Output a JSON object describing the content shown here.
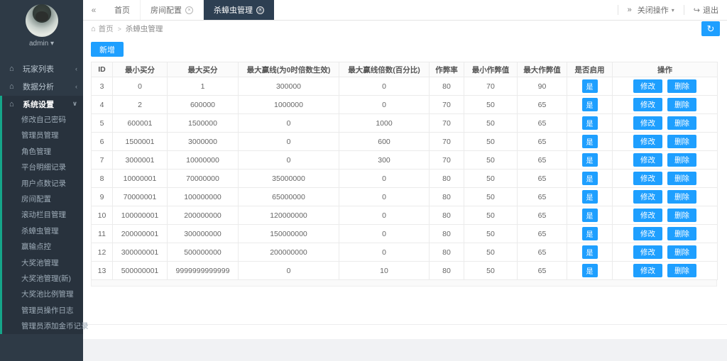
{
  "colors": {
    "accent_blue": "#1e9fff",
    "sidebar_bg": "#2e3a46",
    "sidebar_accent_teal": "#15a589",
    "active_tab_bg": "#2d3f52"
  },
  "sidebar": {
    "user": {
      "name": "admin",
      "caret": "▾"
    },
    "menu": [
      {
        "label": "玩家列表",
        "icon": "home-icon",
        "expanded": false,
        "children": []
      },
      {
        "label": "数据分析",
        "icon": "home-icon",
        "expanded": false,
        "children": []
      },
      {
        "label": "系统设置",
        "icon": "home-icon",
        "expanded": true,
        "children": [
          "修改自己密码",
          "管理员管理",
          "角色管理",
          "平台明细记录",
          "用户点数记录",
          "房间配置",
          "滚动栏目管理",
          "杀蟑虫管理",
          "赢输点控",
          "大奖池管理",
          "大奖池管理(新)",
          "大奖池比例管理",
          "管理员操作日志",
          "管理员添加金币记录"
        ]
      }
    ]
  },
  "tabbar": {
    "collapse_icon": "«",
    "tabs": [
      {
        "label": "首页",
        "closable": false,
        "active": false
      },
      {
        "label": "房间配置",
        "closable": true,
        "active": false
      },
      {
        "label": "杀蟑虫管理",
        "closable": true,
        "active": true
      }
    ],
    "right": {
      "expand_icon": "»",
      "close_ops_label": "关闭操作",
      "logout_icon": "↪",
      "logout_label": "退出"
    }
  },
  "breadcrumb": {
    "home": "首页",
    "separator": ">",
    "current": "杀蟑虫管理"
  },
  "toolbar": {
    "add_label": "新增",
    "refresh_icon": "↻"
  },
  "table": {
    "headers": [
      "ID",
      "最小买分",
      "最大买分",
      "最大赢线(为0时倍数生效)",
      "最大赢线倍数(百分比)",
      "作弊率",
      "最小作弊值",
      "最大作弊值",
      "是否启用",
      "操作"
    ],
    "enabled_label": "是",
    "row_actions": [
      "修改",
      "删除"
    ],
    "rows": [
      {
        "id": "3",
        "min_buy": "0",
        "max_buy": "1",
        "max_win": "300000",
        "max_win_pct": "0",
        "cheat_rate": "80",
        "min_cheat": "70",
        "max_cheat": "90"
      },
      {
        "id": "4",
        "min_buy": "2",
        "max_buy": "600000",
        "max_win": "1000000",
        "max_win_pct": "0",
        "cheat_rate": "70",
        "min_cheat": "50",
        "max_cheat": "65"
      },
      {
        "id": "5",
        "min_buy": "600001",
        "max_buy": "1500000",
        "max_win": "0",
        "max_win_pct": "1000",
        "cheat_rate": "70",
        "min_cheat": "50",
        "max_cheat": "65"
      },
      {
        "id": "6",
        "min_buy": "1500001",
        "max_buy": "3000000",
        "max_win": "0",
        "max_win_pct": "600",
        "cheat_rate": "70",
        "min_cheat": "50",
        "max_cheat": "65"
      },
      {
        "id": "7",
        "min_buy": "3000001",
        "max_buy": "10000000",
        "max_win": "0",
        "max_win_pct": "300",
        "cheat_rate": "70",
        "min_cheat": "50",
        "max_cheat": "65"
      },
      {
        "id": "8",
        "min_buy": "10000001",
        "max_buy": "70000000",
        "max_win": "35000000",
        "max_win_pct": "0",
        "cheat_rate": "80",
        "min_cheat": "50",
        "max_cheat": "65"
      },
      {
        "id": "9",
        "min_buy": "70000001",
        "max_buy": "100000000",
        "max_win": "65000000",
        "max_win_pct": "0",
        "cheat_rate": "80",
        "min_cheat": "50",
        "max_cheat": "65"
      },
      {
        "id": "10",
        "min_buy": "100000001",
        "max_buy": "200000000",
        "max_win": "120000000",
        "max_win_pct": "0",
        "cheat_rate": "80",
        "min_cheat": "50",
        "max_cheat": "65"
      },
      {
        "id": "11",
        "min_buy": "200000001",
        "max_buy": "300000000",
        "max_win": "150000000",
        "max_win_pct": "0",
        "cheat_rate": "80",
        "min_cheat": "50",
        "max_cheat": "65"
      },
      {
        "id": "12",
        "min_buy": "300000001",
        "max_buy": "500000000",
        "max_win": "200000000",
        "max_win_pct": "0",
        "cheat_rate": "80",
        "min_cheat": "50",
        "max_cheat": "65"
      },
      {
        "id": "13",
        "min_buy": "500000001",
        "max_buy": "9999999999999",
        "max_win": "0",
        "max_win_pct": "10",
        "cheat_rate": "80",
        "min_cheat": "50",
        "max_cheat": "65"
      }
    ]
  }
}
